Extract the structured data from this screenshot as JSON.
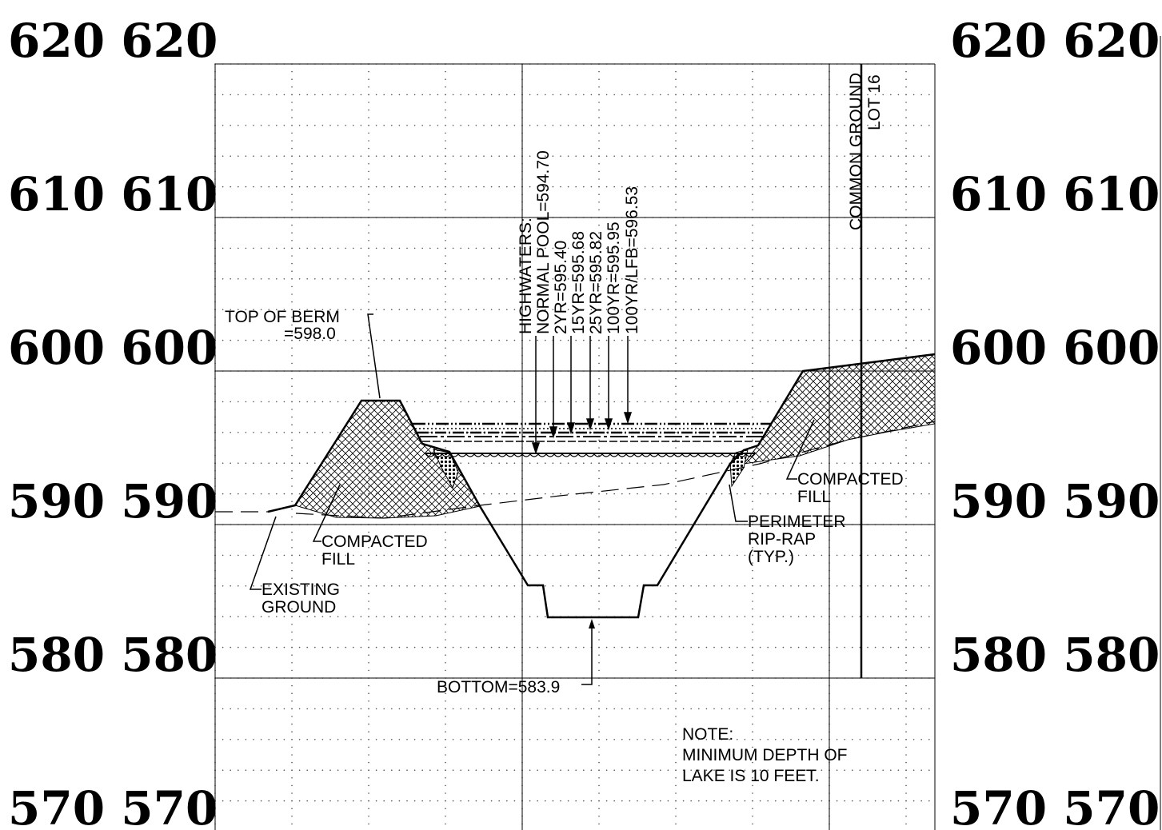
{
  "elevation_labels": {
    "left": [
      "620 620",
      "610 610",
      "600 600",
      "590 590",
      "580 580",
      "570 570"
    ],
    "right": [
      "620 620",
      "610 610",
      "600 600",
      "590 590",
      "580 580",
      "570 570"
    ]
  },
  "annotations": {
    "top_of_berm": [
      "TOP OF BERM",
      "=598.0"
    ],
    "highwaters": [
      "HIGHWATERS:",
      "NORMAL POOL=594.70",
      "2YR=595.40",
      "15YR=595.68",
      "25YR=595.82",
      "100YR=595.95",
      "100YR/LFB=596.53"
    ],
    "common_ground": "COMMON GROUND",
    "lot": "LOT 16",
    "compacted_fill_left": [
      "COMPACTED",
      "FILL"
    ],
    "compacted_fill_right": [
      "COMPACTED",
      "FILL"
    ],
    "existing_ground": [
      "EXISTING",
      "GROUND"
    ],
    "perimeter_riprap": [
      "PERIMETER",
      "RIP-RAP",
      "(TYP.)"
    ],
    "bottom": "BOTTOM=583.9",
    "note": [
      "NOTE:",
      "MINIMUM DEPTH OF",
      "LAKE IS 10 FEET."
    ]
  },
  "colors": {
    "line": "#000000",
    "grid_dot": "#555555",
    "background": "#ffffff"
  }
}
